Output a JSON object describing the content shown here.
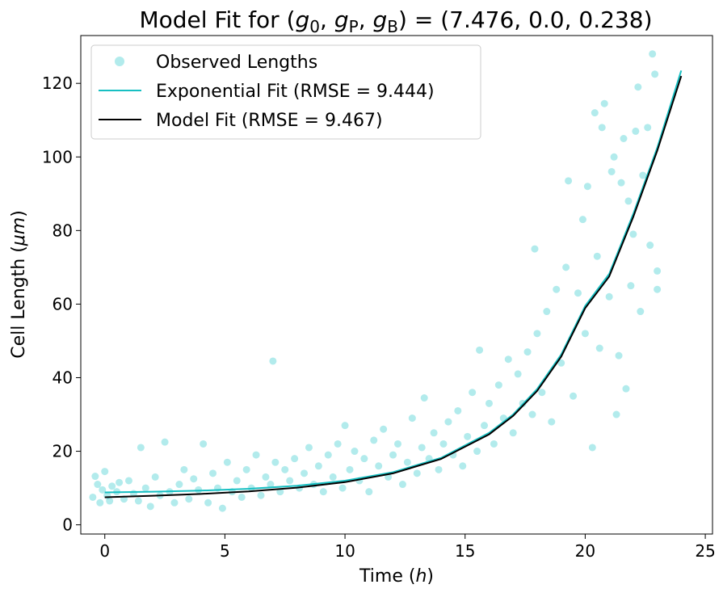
{
  "chart_data": {
    "type": "scatter",
    "title_parts": {
      "prefix": "Model Fit for (",
      "g0_base": "g",
      "g0_sub": "0",
      "gp_base": "g",
      "gp_sub": "P",
      "gb_base": "g",
      "gb_sub": "B",
      "suffix": ") = (7.476, 0.0, 0.238)"
    },
    "xlabel_parts": {
      "text": "Time (",
      "var": "h",
      "close": ")"
    },
    "ylabel_parts": {
      "text": "Cell Length (",
      "var": "μm",
      "close": ")"
    },
    "xlim": [
      -1.0,
      25.3
    ],
    "ylim": [
      -2.5,
      133
    ],
    "xticks": [
      0,
      5,
      10,
      15,
      20,
      25
    ],
    "yticks": [
      0,
      20,
      40,
      60,
      80,
      100,
      120
    ],
    "legend": {
      "position": "upper-left",
      "entries": [
        "Observed Lengths",
        "Exponential Fit (RMSE = 9.444)",
        "Model Fit (RMSE = 9.467)"
      ]
    },
    "colors": {
      "scatter": "#22c5c8",
      "exponential": "#17bfc2",
      "model": "#000000"
    },
    "series": [
      {
        "name": "Observed Lengths",
        "kind": "scatter",
        "points": [
          [
            -0.5,
            7.5
          ],
          [
            -0.4,
            13.2
          ],
          [
            -0.3,
            11
          ],
          [
            -0.2,
            6
          ],
          [
            -0.1,
            9.5
          ],
          [
            0,
            14.5
          ],
          [
            0.1,
            8
          ],
          [
            0.2,
            6.5
          ],
          [
            0.3,
            10.5
          ],
          [
            0.5,
            9
          ],
          [
            0.6,
            11.5
          ],
          [
            0.8,
            7
          ],
          [
            1.0,
            12
          ],
          [
            1.2,
            8.5
          ],
          [
            1.4,
            6.5
          ],
          [
            1.5,
            21
          ],
          [
            1.7,
            10
          ],
          [
            1.9,
            5
          ],
          [
            2.1,
            13
          ],
          [
            2.3,
            8
          ],
          [
            2.5,
            22.5
          ],
          [
            2.7,
            9
          ],
          [
            2.9,
            6
          ],
          [
            3.1,
            11
          ],
          [
            3.3,
            15
          ],
          [
            3.5,
            7
          ],
          [
            3.7,
            12.5
          ],
          [
            3.9,
            9.5
          ],
          [
            4.1,
            22
          ],
          [
            4.3,
            6
          ],
          [
            4.5,
            14
          ],
          [
            4.7,
            10
          ],
          [
            4.9,
            4.5
          ],
          [
            5.1,
            17
          ],
          [
            5.3,
            9
          ],
          [
            5.5,
            12
          ],
          [
            5.7,
            7.5
          ],
          [
            5.9,
            15
          ],
          [
            6.1,
            10
          ],
          [
            6.3,
            19
          ],
          [
            6.5,
            8
          ],
          [
            6.7,
            13
          ],
          [
            6.9,
            11
          ],
          [
            7.0,
            44.5
          ],
          [
            7.1,
            17
          ],
          [
            7.3,
            9
          ],
          [
            7.5,
            15
          ],
          [
            7.7,
            12
          ],
          [
            7.9,
            18
          ],
          [
            8.1,
            10
          ],
          [
            8.3,
            14
          ],
          [
            8.5,
            21
          ],
          [
            8.7,
            11
          ],
          [
            8.9,
            16
          ],
          [
            9.1,
            9
          ],
          [
            9.3,
            19
          ],
          [
            9.5,
            13
          ],
          [
            9.7,
            22
          ],
          [
            9.9,
            10
          ],
          [
            10.0,
            27
          ],
          [
            10.2,
            15
          ],
          [
            10.4,
            20
          ],
          [
            10.6,
            12
          ],
          [
            10.8,
            18
          ],
          [
            11.0,
            9
          ],
          [
            11.2,
            23
          ],
          [
            11.4,
            16
          ],
          [
            11.6,
            26
          ],
          [
            11.8,
            13
          ],
          [
            12.0,
            19
          ],
          [
            12.2,
            22
          ],
          [
            12.4,
            11
          ],
          [
            12.6,
            17
          ],
          [
            12.8,
            29
          ],
          [
            13.0,
            14
          ],
          [
            13.2,
            21
          ],
          [
            13.3,
            34.5
          ],
          [
            13.5,
            18
          ],
          [
            13.7,
            25
          ],
          [
            13.9,
            15
          ],
          [
            14.1,
            22
          ],
          [
            14.3,
            28
          ],
          [
            14.5,
            19
          ],
          [
            14.7,
            31
          ],
          [
            14.9,
            16
          ],
          [
            15.1,
            24
          ],
          [
            15.3,
            36
          ],
          [
            15.5,
            20
          ],
          [
            15.6,
            47.5
          ],
          [
            15.8,
            27
          ],
          [
            16.0,
            33
          ],
          [
            16.2,
            22
          ],
          [
            16.4,
            38
          ],
          [
            16.6,
            29
          ],
          [
            16.8,
            45
          ],
          [
            17.0,
            25
          ],
          [
            17.2,
            41
          ],
          [
            17.4,
            33
          ],
          [
            17.6,
            47
          ],
          [
            17.8,
            30
          ],
          [
            17.9,
            75
          ],
          [
            18.0,
            52
          ],
          [
            18.2,
            36
          ],
          [
            18.4,
            58
          ],
          [
            18.6,
            28
          ],
          [
            18.8,
            64
          ],
          [
            19.0,
            44
          ],
          [
            19.2,
            70
          ],
          [
            19.3,
            93.5
          ],
          [
            19.5,
            35
          ],
          [
            19.7,
            63
          ],
          [
            19.9,
            83
          ],
          [
            20.0,
            52
          ],
          [
            20.1,
            92
          ],
          [
            20.3,
            21
          ],
          [
            20.4,
            112
          ],
          [
            20.5,
            73
          ],
          [
            20.6,
            48
          ],
          [
            20.7,
            108
          ],
          [
            20.8,
            114.5
          ],
          [
            21.0,
            62
          ],
          [
            21.1,
            96
          ],
          [
            21.2,
            100
          ],
          [
            21.3,
            30
          ],
          [
            21.4,
            46
          ],
          [
            21.5,
            93
          ],
          [
            21.6,
            105
          ],
          [
            21.7,
            37
          ],
          [
            21.8,
            88
          ],
          [
            21.9,
            65
          ],
          [
            22.0,
            79
          ],
          [
            22.1,
            107
          ],
          [
            22.2,
            119
          ],
          [
            22.3,
            58
          ],
          [
            22.4,
            95
          ],
          [
            22.6,
            108
          ],
          [
            22.7,
            76
          ],
          [
            22.8,
            128
          ],
          [
            22.9,
            122.5
          ],
          [
            23.0,
            64
          ],
          [
            23.0,
            69
          ]
        ]
      },
      {
        "name": "Exponential Fit (RMSE = 9.444)",
        "kind": "line",
        "x": [
          0,
          2,
          4,
          6,
          8,
          10,
          12,
          14,
          16,
          17,
          18,
          19,
          20,
          21,
          22,
          23,
          24
        ],
        "y": [
          8.8,
          9.0,
          9.3,
          9.8,
          10.6,
          12.0,
          14.3,
          18.2,
          25.0,
          30.0,
          36.9,
          46.3,
          59.5,
          68.2,
          84.5,
          102.5,
          123.5
        ]
      },
      {
        "name": "Model Fit (RMSE = 9.467)",
        "kind": "line",
        "x": [
          0,
          2,
          4,
          6,
          8,
          10,
          12,
          14,
          16,
          17,
          18,
          19,
          20,
          21,
          22,
          23,
          24
        ],
        "y": [
          7.5,
          7.9,
          8.4,
          9.1,
          10.1,
          11.6,
          14.0,
          17.9,
          24.6,
          29.6,
          36.4,
          45.7,
          58.9,
          67.5,
          83.7,
          101.7,
          122.0
        ]
      }
    ]
  }
}
